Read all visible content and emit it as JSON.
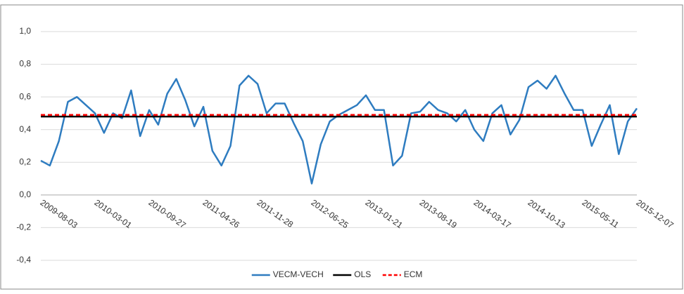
{
  "chart_data": {
    "type": "line",
    "categories": [
      "2009-08-03",
      null,
      null,
      null,
      null,
      null,
      "2010-03-01",
      null,
      null,
      null,
      null,
      null,
      "2010-09-27",
      null,
      null,
      null,
      null,
      null,
      "2011-04-26",
      null,
      null,
      null,
      null,
      null,
      "2011-11-28",
      null,
      null,
      null,
      null,
      null,
      "2012-06-25",
      null,
      null,
      null,
      null,
      null,
      "2013-01-21",
      null,
      null,
      null,
      null,
      null,
      "2013-08-19",
      null,
      null,
      null,
      null,
      null,
      "2014-03-17",
      null,
      null,
      null,
      null,
      null,
      "2014-10-13",
      null,
      null,
      null,
      null,
      null,
      "2015-05-11",
      null,
      null,
      null,
      null,
      null,
      "2015-12-07"
    ],
    "series": [
      {
        "name": "VECM-VECH",
        "color": "#2e7cc0",
        "values": [
          0.21,
          0.18,
          0.33,
          0.57,
          0.6,
          0.55,
          0.5,
          0.38,
          0.5,
          0.47,
          0.64,
          0.36,
          0.52,
          0.43,
          0.62,
          0.71,
          0.58,
          0.42,
          0.54,
          0.27,
          0.18,
          0.3,
          0.67,
          0.73,
          0.68,
          0.5,
          0.56,
          0.56,
          0.44,
          0.33,
          0.07,
          0.31,
          0.45,
          0.49,
          0.52,
          0.55,
          0.61,
          0.52,
          0.52,
          0.18,
          0.24,
          0.5,
          0.51,
          0.57,
          0.52,
          0.5,
          0.45,
          0.52,
          0.4,
          0.33,
          0.5,
          0.55,
          0.37,
          0.46,
          0.66,
          0.7,
          0.65,
          0.73,
          0.62,
          0.52,
          0.52,
          0.3,
          0.43,
          0.55,
          0.25,
          0.45,
          0.53
        ]
      },
      {
        "name": "OLS",
        "color": "#000000",
        "value": 0.48
      },
      {
        "name": "ECM",
        "color": "#ff0000",
        "value": 0.49,
        "dashed": true
      }
    ],
    "ylim": [
      -0.4,
      1.0
    ],
    "yticks": [
      {
        "value": -0.4,
        "label": "-0,4"
      },
      {
        "value": -0.2,
        "label": "-0,2"
      },
      {
        "value": 0,
        "label": "0,0"
      },
      {
        "value": 0.2,
        "label": "0,2"
      },
      {
        "value": 0.4,
        "label": "0,4"
      },
      {
        "value": 0.6,
        "label": "0,6"
      },
      {
        "value": 0.8,
        "label": "0,8"
      },
      {
        "value": 1.0,
        "label": "1,0"
      }
    ],
    "grid": true,
    "legend": "bottom"
  }
}
